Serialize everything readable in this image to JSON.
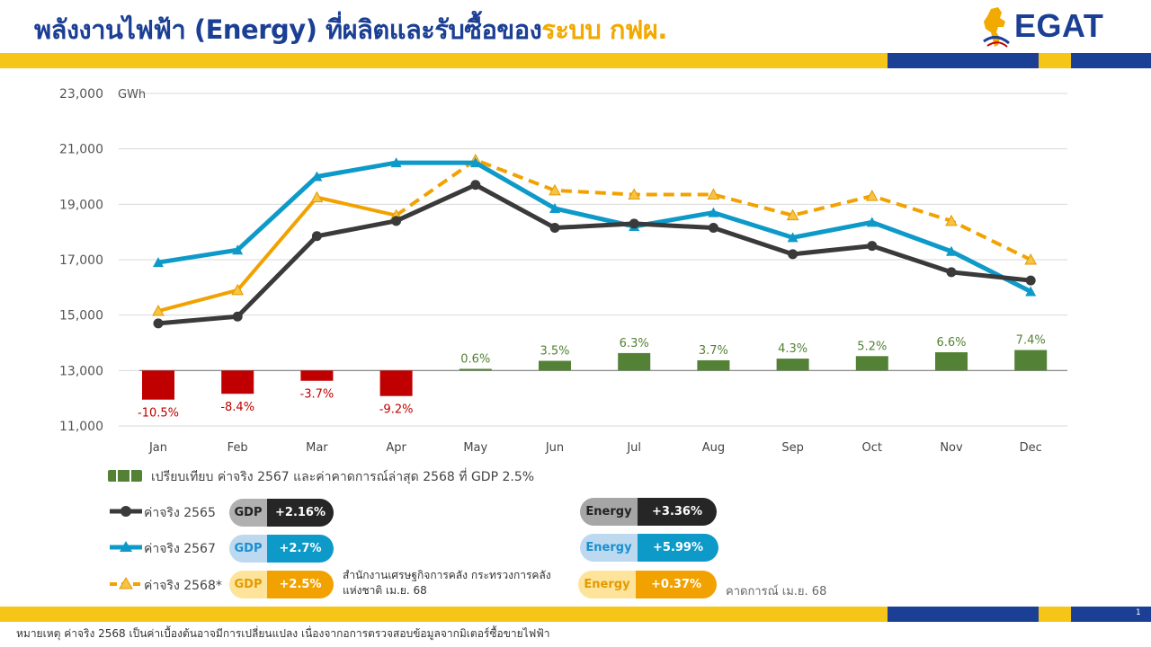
{
  "header": {
    "title_main": "พลังงานไฟฟ้า (Energy) ที่ผลิตและรับซื้อของ",
    "title_accent": "ระบบ กฟผ.",
    "logo_text": "EGAT"
  },
  "colors": {
    "navy": "#1b3f94",
    "gold": "#f5c518",
    "series_2565": "#3a3a3a",
    "series_2567": "#0e9ac9",
    "series_2568": "#f2a200",
    "bar_positive": "#538135",
    "bar_negative": "#c00000"
  },
  "chart_data": {
    "type": "line",
    "unit_label": "GWh",
    "y_ticks": [
      "23,000",
      "21,000",
      "19,000",
      "17,000",
      "15,000",
      "13,000",
      "11,000"
    ],
    "ylim": [
      11000,
      23000
    ],
    "baseline": 13000,
    "bar_scale_gwh_per_pct": 100,
    "grid": true,
    "categories": [
      "Jan",
      "Feb",
      "Mar",
      "Apr",
      "May",
      "Jun",
      "Jul",
      "Aug",
      "Sep",
      "Oct",
      "Nov",
      "Dec"
    ],
    "series": [
      {
        "name": "ค่าจริง 2565",
        "style": "solid-circle",
        "values": [
          14700,
          14950,
          17850,
          18400,
          19700,
          18150,
          18300,
          18150,
          17200,
          17500,
          16550,
          16250
        ]
      },
      {
        "name": "ค่าจริง 2567",
        "style": "solid-triangle",
        "values": [
          16900,
          17350,
          20000,
          20500,
          20500,
          18850,
          18200,
          18700,
          17800,
          18350,
          17300,
          15850
        ]
      },
      {
        "name": "ค่าจริง 2568*",
        "style": "mixed-triangle",
        "solid_until_index": 3,
        "values": [
          15150,
          15900,
          19250,
          18600,
          20600,
          19500,
          19350,
          19350,
          18600,
          19300,
          18400,
          17000
        ]
      }
    ],
    "bars": {
      "name": "เปรียบเทียบ ค่าจริง 2567 และค่าคาดการณ์ล่าสุด 2568 ที่ GDP 2.5%",
      "values": [
        -10.5,
        -8.4,
        -3.7,
        -9.2,
        0.6,
        3.5,
        6.3,
        3.7,
        4.3,
        5.2,
        6.6,
        7.4
      ],
      "labels": [
        "-10.5%",
        "-8.4%",
        "-3.7%",
        "-9.2%",
        "0.6%",
        "3.5%",
        "6.3%",
        "3.7%",
        "4.3%",
        "5.2%",
        "6.6%",
        "7.4%"
      ]
    }
  },
  "legend": {
    "bars_label": "เปรียบเทียบ ค่าจริง 2567 และค่าคาดการณ์ล่าสุด 2568 ที่ GDP 2.5%",
    "rows": [
      {
        "label": "ค่าจริง 2565",
        "gdp_key": "GDP",
        "gdp_value": "+2.16%",
        "energy_key": "Energy",
        "energy_value": "+3.36%"
      },
      {
        "label": "ค่าจริง 2567",
        "gdp_key": "GDP",
        "gdp_value": "+2.7%",
        "energy_key": "Energy",
        "energy_value": "+5.99%"
      },
      {
        "label": "ค่าจริง 2568*",
        "gdp_key": "GDP",
        "gdp_value": "+2.5%",
        "energy_key": "Energy",
        "energy_value": "+0.37%"
      }
    ]
  },
  "notes": {
    "gdp_source": "สำนักงานเศรษฐกิจการคลัง กระทรวงการคลัง แห่งชาติ  เม.ย. 68",
    "forecast": "คาดการณ์ เม.ย. 68",
    "page": "1",
    "footnote": "หมายเหตุ ค่าจริง 2568 เป็นค่าเบื้องต้นอาจมีการเปลี่ยนแปลง เนื่องจากอการตรวจสอบข้อมูลจากมิเตอร์ซื้อขายไฟฟ้า"
  }
}
